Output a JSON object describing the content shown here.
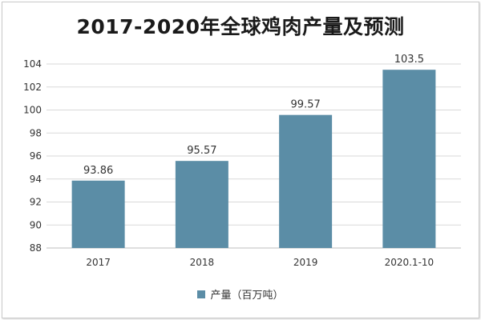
{
  "chart_data": {
    "type": "bar",
    "title": "2017-2020年全球鸡肉产量及预测",
    "categories": [
      "2017",
      "2018",
      "2019",
      "2020.1-10"
    ],
    "series": [
      {
        "name": "产量（百万吨）",
        "values": [
          93.86,
          95.57,
          99.57,
          103.5
        ]
      }
    ],
    "data_labels": [
      "93.86",
      "95.57",
      "99.57",
      "103.5"
    ],
    "ylim": [
      88,
      104
    ],
    "yticks": [
      88,
      90,
      92,
      94,
      96,
      98,
      100,
      102,
      104
    ],
    "xlabel": "",
    "ylabel": "",
    "grid": true,
    "legend_position": "bottom",
    "bar_color": "#5b8da6"
  }
}
